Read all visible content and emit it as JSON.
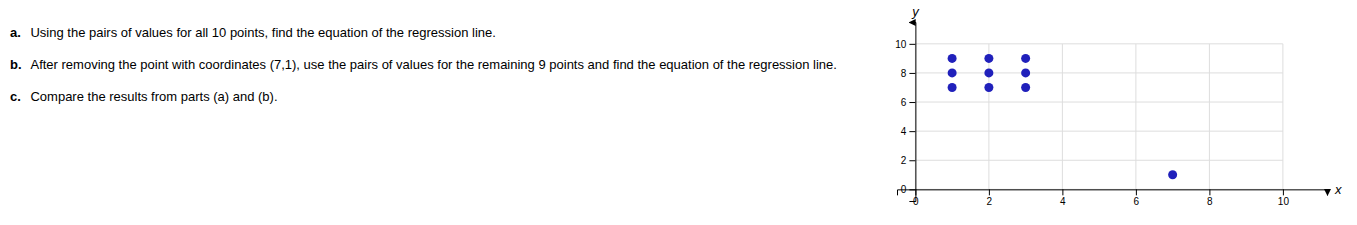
{
  "chart_data": {
    "type": "scatter",
    "annotations": [
      {
        "label": "a.",
        "text": " Using the pairs of values for all 10 points, find the equation of the regression line."
      },
      {
        "label": "b.",
        "text": " After removing the point with coordinates (7,1), use the pairs of values for the remaining 9 points and find the equation of the regression line."
      },
      {
        "label": "c.",
        "text": " Compare the results from parts (a) and (b)."
      }
    ],
    "x_label": "x",
    "y_label": "y",
    "x": [
      1,
      2,
      3,
      1,
      2,
      3,
      1,
      2,
      3,
      7
    ],
    "values": [
      9,
      9,
      9,
      8,
      8,
      8,
      7,
      7,
      7,
      1
    ],
    "color": "#2020BB",
    "xlim": [
      -0.5,
      11.2
    ],
    "ylim": [
      -0.8,
      11.5
    ],
    "xticks": [
      0,
      2,
      4,
      6,
      8,
      10
    ],
    "yticks": [
      0,
      2,
      4,
      6,
      8,
      10
    ],
    "grid": true
  }
}
